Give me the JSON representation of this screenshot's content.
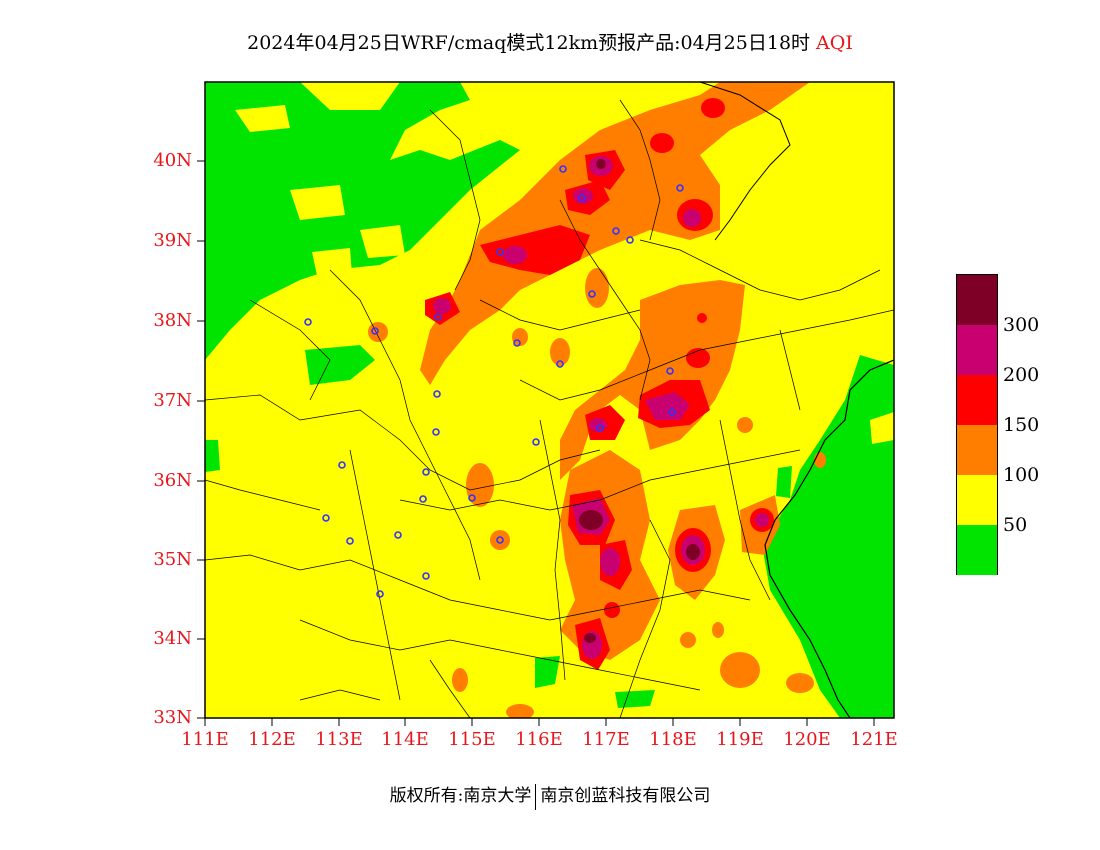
{
  "header": {
    "title": "2024年04月25日WRF/cmaq模式12km预报产品:04月25日18时",
    "variable": "AQI"
  },
  "map": {
    "lon_range": [
      111,
      121.3
    ],
    "lat_range": [
      33,
      41
    ],
    "lat_ticks": [
      "40N",
      "39N",
      "38N",
      "37N",
      "36N",
      "35N",
      "34N",
      "33N"
    ],
    "lon_ticks": [
      "111E",
      "112E",
      "113E",
      "114E",
      "115E",
      "116E",
      "117E",
      "118E",
      "119E",
      "120E",
      "121E"
    ],
    "tick_color": "#e8151b"
  },
  "legend": {
    "colors": [
      "#7f0027",
      "#c9006f",
      "#ff0000",
      "#ff7e00",
      "#ffff00",
      "#00e400"
    ],
    "labels": [
      "300",
      "200",
      "150",
      "100",
      "50"
    ]
  },
  "footer": {
    "left": "版权所有:南京大学",
    "right": "南京创蓝科技有限公司"
  }
}
